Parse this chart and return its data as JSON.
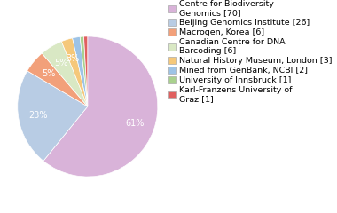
{
  "labels": [
    "Centre for Biodiversity\nGenomics [70]",
    "Beijing Genomics Institute [26]",
    "Macrogen, Korea [6]",
    "Canadian Centre for DNA\nBarcoding [6]",
    "Natural History Museum, London [3]",
    "Mined from GenBank, NCBI [2]",
    "University of Innsbruck [1]",
    "Karl-Franzens University of\nGraz [1]"
  ],
  "values": [
    70,
    26,
    6,
    6,
    3,
    2,
    1,
    1
  ],
  "colors": [
    "#d9b3d9",
    "#b8cce4",
    "#f2a07a",
    "#d9e8c4",
    "#f5c87a",
    "#9dc3e6",
    "#a9d18e",
    "#e06060"
  ],
  "background_color": "#ffffff",
  "legend_fontsize": 6.8,
  "pct_fontsize": 7.0,
  "pct_threshold": 0.018
}
